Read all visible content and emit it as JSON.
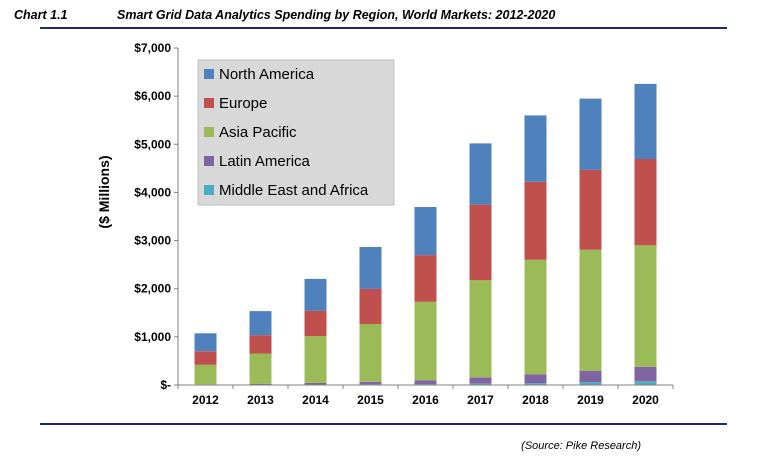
{
  "header": {
    "chart_number": "Chart 1.1",
    "title": "Smart Grid Data Analytics Spending by Region, World Markets: 2012-2020"
  },
  "source": "(Source: Pike Research)",
  "chart_data": {
    "type": "bar",
    "stacked": true,
    "title": "Smart Grid Data Analytics Spending by Region, World Markets: 2012-2020",
    "ylabel": "($ Millions)",
    "xlabel": "",
    "categories": [
      "2012",
      "2013",
      "2014",
      "2015",
      "2016",
      "2017",
      "2018",
      "2019",
      "2020"
    ],
    "ylim": [
      0,
      7000
    ],
    "yticks": [
      0,
      1000,
      2000,
      3000,
      4000,
      5000,
      6000,
      7000
    ],
    "ytick_labels": [
      "$-",
      "$1,000",
      "$2,000",
      "$3,000",
      "$4,000",
      "$5,000",
      "$6,000",
      "$7,000"
    ],
    "grid": false,
    "legend_position": "top-left",
    "series": [
      {
        "name": "Middle East and Africa",
        "color": "#4bacc6",
        "values": [
          3,
          5,
          8,
          12,
          18,
          28,
          40,
          60,
          75
        ]
      },
      {
        "name": "Latin America",
        "color": "#8064a2",
        "values": [
          10,
          20,
          35,
          55,
          80,
          130,
          180,
          230,
          300
        ]
      },
      {
        "name": "Asia Pacific",
        "color": "#9bbb59",
        "values": [
          410,
          630,
          970,
          1200,
          1630,
          2020,
          2380,
          2520,
          2530
        ]
      },
      {
        "name": "Europe",
        "color": "#c0504d",
        "values": [
          280,
          380,
          530,
          730,
          970,
          1570,
          1620,
          1660,
          1790
        ]
      },
      {
        "name": "North America",
        "color": "#4f81bd",
        "values": [
          370,
          500,
          660,
          870,
          1000,
          1270,
          1380,
          1480,
          1560
        ]
      }
    ],
    "legend_order": [
      "North America",
      "Europe",
      "Asia Pacific",
      "Latin America",
      "Middle East and Africa"
    ]
  }
}
